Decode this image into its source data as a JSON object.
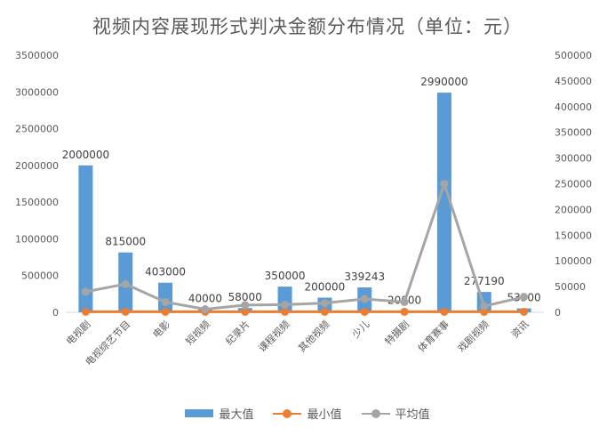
{
  "chart_data": {
    "type": "bar",
    "title": "视频内容展现形式判决金额分布情况（单位：元）",
    "categories": [
      "电视剧",
      "电视综艺节目",
      "电影",
      "短视频",
      "纪录片",
      "课程视频",
      "其他视频",
      "少儿",
      "特摄剧",
      "体育赛事",
      "戏剧视频",
      "资讯"
    ],
    "y_left": {
      "min": 0,
      "max": 3500000,
      "step": 500000
    },
    "y_right": {
      "min": 0,
      "max": 500000,
      "step": 50000
    },
    "grid": false,
    "legend_position": "bottom",
    "series": [
      {
        "name": "最大值",
        "type": "bar",
        "axis": "left",
        "color": "#5b9bd5",
        "values": [
          2000000,
          815000,
          403000,
          40000,
          58000,
          350000,
          200000,
          339243,
          20000,
          2990000,
          277190,
          53500
        ],
        "labels": [
          "2000000",
          "815000",
          "403000",
          "40000",
          "58000",
          "350000",
          "200000",
          "339243",
          "20000",
          "2990000",
          "277190",
          "53500"
        ]
      },
      {
        "name": "最小值",
        "type": "line",
        "axis": "right",
        "color": "#ed7d31",
        "values": [
          1000,
          1000,
          1000,
          1000,
          1000,
          1000,
          1000,
          1000,
          1000,
          1000,
          1000,
          1000
        ]
      },
      {
        "name": "平均值",
        "type": "line",
        "axis": "right",
        "color": "#a5a5a5",
        "values": [
          40000,
          55000,
          20000,
          6000,
          14000,
          15000,
          18000,
          26000,
          20000,
          250000,
          12000,
          30000
        ]
      }
    ]
  }
}
